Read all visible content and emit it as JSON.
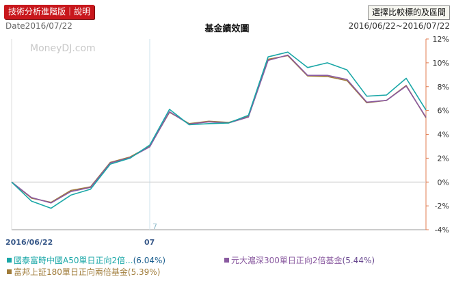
{
  "header": {
    "tech_button": "技術分析進階版｜說明",
    "compare_button": "選擇比較標的及區間",
    "date_label": "Date2016/07/22",
    "title": "基金績效圖",
    "range_label": "2016/06/22~2016/07/22"
  },
  "watermark": "MoneyDJ.com",
  "colors": {
    "series1": "#1aa7a7",
    "series2": "#8a5aa0",
    "series3": "#a07c3a",
    "axis_right": "#e07b4f",
    "red_button": "#c8171c"
  },
  "chart_data": {
    "type": "line",
    "x_labels": [
      "2016/06/22",
      "07"
    ],
    "month_marker": "7",
    "ylim": [
      -4,
      12
    ],
    "y_ticks": [
      "-4%",
      "-2%",
      "0%",
      "2%",
      "4%",
      "6%",
      "8%",
      "10%",
      "12%"
    ],
    "grid": true,
    "series": [
      {
        "name": "國泰富時中國A50單日正向2倍...",
        "legend_value": "(6.04%)",
        "color": "#1aa7a7",
        "values": [
          0.0,
          -1.6,
          -2.2,
          -1.1,
          -0.6,
          1.5,
          2.0,
          3.1,
          6.1,
          4.8,
          4.9,
          4.95,
          5.6,
          10.5,
          10.9,
          9.6,
          10.0,
          9.4,
          7.2,
          7.3,
          8.7,
          6.04
        ]
      },
      {
        "name": "元大滬深300單日正向2倍基金",
        "legend_value": "(5.44%)",
        "color": "#8a5aa0",
        "values": [
          0.0,
          -1.3,
          -1.75,
          -0.8,
          -0.45,
          1.6,
          2.05,
          2.95,
          5.9,
          4.85,
          5.05,
          4.95,
          5.45,
          10.2,
          10.65,
          8.95,
          8.95,
          8.6,
          6.7,
          6.85,
          8.05,
          5.44
        ]
      },
      {
        "name": "富邦上証180單日正向兩倍基金",
        "legend_value": "(5.39%)",
        "color": "#a07c3a",
        "values": [
          0.0,
          -1.35,
          -1.7,
          -0.7,
          -0.4,
          1.65,
          2.1,
          3.0,
          5.85,
          4.9,
          5.1,
          5.0,
          5.5,
          10.3,
          10.6,
          8.9,
          8.85,
          8.5,
          6.65,
          6.85,
          8.1,
          5.39
        ]
      }
    ]
  }
}
